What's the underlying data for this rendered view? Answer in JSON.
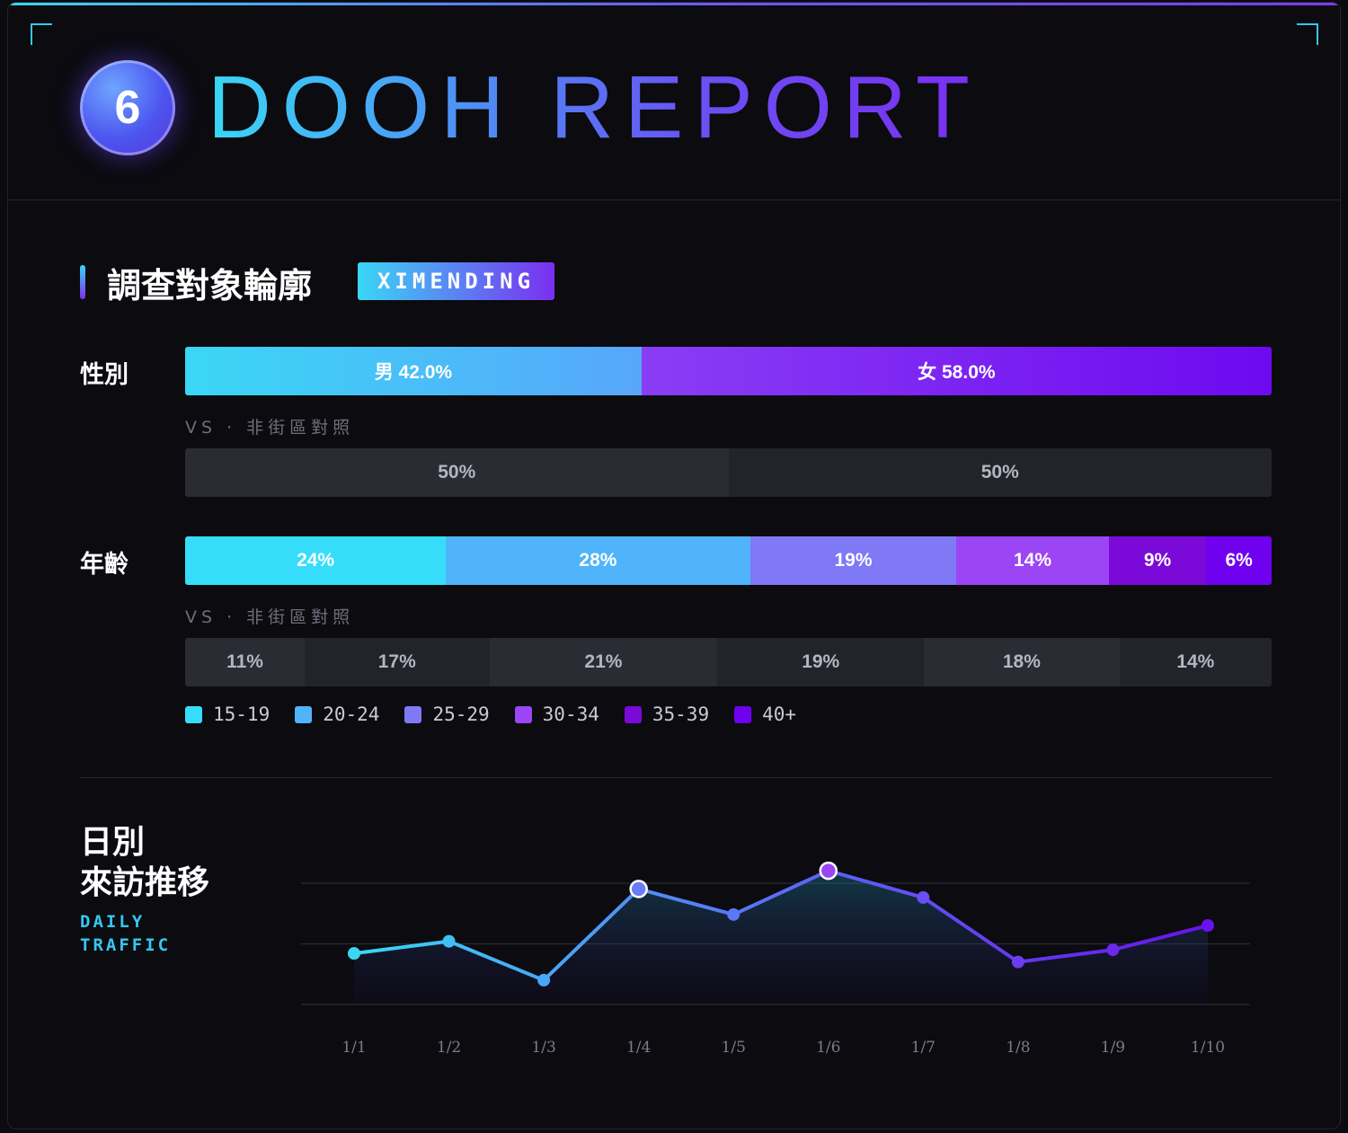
{
  "header": {
    "badge_number": "6",
    "title": "DOOH REPORT"
  },
  "profile": {
    "section_title": "調查對象輪廓",
    "location_tag": "XIMENDING",
    "vs_label": "VS · 非街區對照",
    "gender": {
      "label": "性別",
      "main": [
        {
          "label": "男 42.0%",
          "value": 42.0
        },
        {
          "label": "女 58.0%",
          "value": 58.0
        }
      ],
      "compare": [
        {
          "label": "50%",
          "value": 50
        },
        {
          "label": "50%",
          "value": 50
        }
      ]
    },
    "age": {
      "label": "年齡",
      "main": [
        {
          "label": "24%",
          "value": 24
        },
        {
          "label": "28%",
          "value": 28
        },
        {
          "label": "19%",
          "value": 19
        },
        {
          "label": "14%",
          "value": 14
        },
        {
          "label": "9%",
          "value": 9
        },
        {
          "label": "6%",
          "value": 6
        }
      ],
      "compare": [
        {
          "label": "11%",
          "value": 11
        },
        {
          "label": "17%",
          "value": 17
        },
        {
          "label": "21%",
          "value": 21
        },
        {
          "label": "19%",
          "value": 19
        },
        {
          "label": "18%",
          "value": 18
        },
        {
          "label": "14%",
          "value": 14
        }
      ],
      "legend": [
        "15-19",
        "20-24",
        "25-29",
        "30-34",
        "35-39",
        "40+"
      ]
    }
  },
  "colors": {
    "gender_male": [
      "#3ad7f5",
      "#58a6fb"
    ],
    "gender_female": [
      "#8a3df5",
      "#6e09f0"
    ],
    "age": [
      "#36ddfb",
      "#4fb4f9",
      "#7f79f6",
      "#9b45f5",
      "#7b09d8",
      "#7000f0"
    ],
    "compare_dark": "#23232a",
    "compare_light": "#2b2b33"
  },
  "daily": {
    "title_line1": "日別",
    "title_line2": "來訪推移",
    "subtitle_line1": "DAILY",
    "subtitle_line2": "TRAFFIC"
  },
  "chart_data": [
    {
      "type": "bar",
      "title": "性別",
      "categories": [
        "男",
        "女"
      ],
      "series": [
        {
          "name": "XIMENDING",
          "values": [
            42.0,
            58.0
          ]
        },
        {
          "name": "非街區對照",
          "values": [
            50,
            50
          ]
        }
      ]
    },
    {
      "type": "bar",
      "title": "年齡",
      "categories": [
        "15-19",
        "20-24",
        "25-29",
        "30-34",
        "35-39",
        "40+"
      ],
      "series": [
        {
          "name": "XIMENDING",
          "values": [
            24,
            28,
            19,
            14,
            9,
            6
          ]
        },
        {
          "name": "非街區對照",
          "values": [
            11,
            17,
            21,
            19,
            18,
            14
          ]
        }
      ]
    },
    {
      "type": "area",
      "title": "日別 來訪推移",
      "x": [
        "1/1",
        "1/2",
        "1/3",
        "1/4",
        "1/5",
        "1/6",
        "1/7",
        "1/8",
        "1/9",
        "1/10"
      ],
      "values": [
        42,
        52,
        20,
        95,
        74,
        110,
        88,
        35,
        45,
        65
      ],
      "highlighted": [
        "1/4",
        "1/6"
      ],
      "ylim": [
        0,
        150
      ],
      "grid": true
    }
  ]
}
